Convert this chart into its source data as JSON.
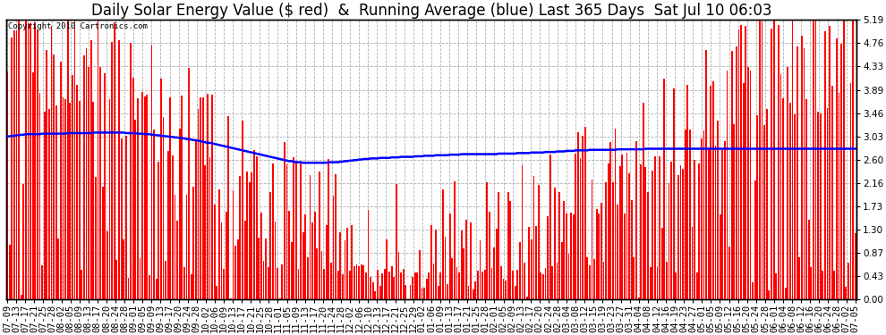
{
  "title": "Daily Solar Energy Value ($ red)  &  Running Average (blue) Last 365 Days  Sat Jul 10 06:03",
  "copyright_text": "Copyright 2010 Cartronics.com",
  "ylabel_right_ticks": [
    0.0,
    0.43,
    0.87,
    1.3,
    1.73,
    2.16,
    2.6,
    3.03,
    3.46,
    3.89,
    4.33,
    4.76,
    5.19
  ],
  "ylim": [
    0.0,
    5.19
  ],
  "bar_color": "#ff0000",
  "avg_color": "#0000ff",
  "bg_color": "#ffffff",
  "plot_bg_color": "#ffffff",
  "grid_color": "#b0b0b0",
  "title_fontsize": 12,
  "tick_fontsize": 7.5,
  "x_labels": [
    "07-09",
    "07-13",
    "07-17",
    "07-21",
    "07-25",
    "07-28",
    "08-02",
    "08-05",
    "08-09",
    "08-13",
    "08-17",
    "08-20",
    "08-24",
    "08-28",
    "09-01",
    "09-05",
    "09-09",
    "09-13",
    "09-17",
    "09-20",
    "09-24",
    "09-28",
    "10-02",
    "10-06",
    "10-09",
    "10-13",
    "10-17",
    "10-21",
    "10-25",
    "10-28",
    "11-01",
    "11-05",
    "11-09",
    "11-13",
    "11-17",
    "11-20",
    "11-24",
    "11-28",
    "12-02",
    "12-06",
    "12-10",
    "12-13",
    "12-17",
    "12-21",
    "12-25",
    "12-29",
    "01-02",
    "01-06",
    "01-09",
    "01-13",
    "01-17",
    "01-21",
    "01-25",
    "01-28",
    "02-01",
    "02-05",
    "02-09",
    "02-13",
    "02-17",
    "02-20",
    "02-24",
    "02-28",
    "03-04",
    "03-08",
    "03-12",
    "03-15",
    "03-19",
    "03-23",
    "03-27",
    "03-31",
    "04-04",
    "04-08",
    "04-12",
    "04-16",
    "04-19",
    "04-23",
    "04-27",
    "05-01",
    "05-05",
    "05-09",
    "05-12",
    "05-16",
    "05-20",
    "05-24",
    "05-28",
    "06-01",
    "06-04",
    "06-08",
    "06-12",
    "06-16",
    "06-20",
    "06-24",
    "06-28",
    "07-02",
    "07-05"
  ],
  "avg_curve": [
    3.03,
    3.03,
    3.04,
    3.04,
    3.05,
    3.05,
    3.06,
    3.06,
    3.07,
    3.07,
    3.07,
    3.07,
    3.07,
    3.07,
    3.07,
    3.08,
    3.08,
    3.08,
    3.08,
    3.08,
    3.08,
    3.08,
    3.08,
    3.08,
    3.08,
    3.08,
    3.09,
    3.09,
    3.09,
    3.09,
    3.09,
    3.09,
    3.09,
    3.09,
    3.09,
    3.09,
    3.09,
    3.1,
    3.1,
    3.1,
    3.1,
    3.1,
    3.1,
    3.1,
    3.1,
    3.1,
    3.1,
    3.1,
    3.1,
    3.1,
    3.1,
    3.09,
    3.09,
    3.09,
    3.09,
    3.09,
    3.08,
    3.08,
    3.08,
    3.07,
    3.07,
    3.07,
    3.06,
    3.06,
    3.05,
    3.05,
    3.04,
    3.04,
    3.03,
    3.03,
    3.02,
    3.02,
    3.01,
    3.01,
    3.0,
    3.0,
    2.99,
    2.98,
    2.98,
    2.97,
    2.96,
    2.96,
    2.95,
    2.94,
    2.93,
    2.92,
    2.91,
    2.91,
    2.9,
    2.89,
    2.88,
    2.87,
    2.86,
    2.85,
    2.84,
    2.83,
    2.82,
    2.81,
    2.8,
    2.79,
    2.78,
    2.77,
    2.76,
    2.75,
    2.74,
    2.73,
    2.72,
    2.71,
    2.7,
    2.69,
    2.68,
    2.67,
    2.66,
    2.65,
    2.64,
    2.63,
    2.62,
    2.61,
    2.6,
    2.59,
    2.58,
    2.57,
    2.57,
    2.56,
    2.55,
    2.55,
    2.55,
    2.54,
    2.54,
    2.54,
    2.54,
    2.54,
    2.54,
    2.54,
    2.54,
    2.54,
    2.54,
    2.54,
    2.55,
    2.55,
    2.55,
    2.55,
    2.55,
    2.56,
    2.56,
    2.57,
    2.57,
    2.58,
    2.58,
    2.59,
    2.59,
    2.6,
    2.6,
    2.61,
    2.61,
    2.61,
    2.62,
    2.62,
    2.62,
    2.62,
    2.63,
    2.63,
    2.63,
    2.63,
    2.63,
    2.64,
    2.64,
    2.64,
    2.64,
    2.65,
    2.65,
    2.65,
    2.65,
    2.65,
    2.65,
    2.66,
    2.66,
    2.66,
    2.66,
    2.67,
    2.67,
    2.67,
    2.67,
    2.67,
    2.68,
    2.68,
    2.68,
    2.68,
    2.68,
    2.68,
    2.69,
    2.69,
    2.69,
    2.69,
    2.69,
    2.7,
    2.7,
    2.7,
    2.7,
    2.7,
    2.7,
    2.7,
    2.7,
    2.7,
    2.7,
    2.7,
    2.7,
    2.7,
    2.7,
    2.7,
    2.7,
    2.71,
    2.71,
    2.71,
    2.71,
    2.71,
    2.71,
    2.71,
    2.71,
    2.72,
    2.72,
    2.72,
    2.72,
    2.72,
    2.72,
    2.73,
    2.73,
    2.73,
    2.73,
    2.73,
    2.73,
    2.74,
    2.74,
    2.74,
    2.74,
    2.74,
    2.75,
    2.75,
    2.75,
    2.75,
    2.76,
    2.76,
    2.76,
    2.76,
    2.77,
    2.77,
    2.77,
    2.77,
    2.77,
    2.77,
    2.78,
    2.78,
    2.78,
    2.78,
    2.78,
    2.78,
    2.78,
    2.78,
    2.78,
    2.78,
    2.78,
    2.78,
    2.79,
    2.79,
    2.79,
    2.79,
    2.79,
    2.79,
    2.79,
    2.79,
    2.79,
    2.79,
    2.79,
    2.79,
    2.8,
    2.8,
    2.8,
    2.8,
    2.8,
    2.8,
    2.8,
    2.8,
    2.8,
    2.8,
    2.8,
    2.8,
    2.8,
    2.8,
    2.8,
    2.8,
    2.8,
    2.8,
    2.8,
    2.8,
    2.8,
    2.8,
    2.8,
    2.8,
    2.8,
    2.8,
    2.8,
    2.8,
    2.8,
    2.8,
    2.8,
    2.8,
    2.8,
    2.8,
    2.8,
    2.8,
    2.8,
    2.8,
    2.8,
    2.8,
    2.8,
    2.8,
    2.8,
    2.8,
    2.8,
    2.8,
    2.8,
    2.8,
    2.8,
    2.8,
    2.8,
    2.8,
    2.8,
    2.8,
    2.8,
    2.8,
    2.8,
    2.8,
    2.8,
    2.8,
    2.8,
    2.8,
    2.8,
    2.8,
    2.8,
    2.8,
    2.8,
    2.8,
    2.8,
    2.8,
    2.8,
    2.8,
    2.8,
    2.8,
    2.8,
    2.8,
    2.8,
    2.8,
    2.8,
    2.8,
    2.8,
    2.8,
    2.8,
    2.8,
    2.8,
    2.8,
    2.8,
    2.8,
    2.8,
    2.8,
    2.8
  ]
}
